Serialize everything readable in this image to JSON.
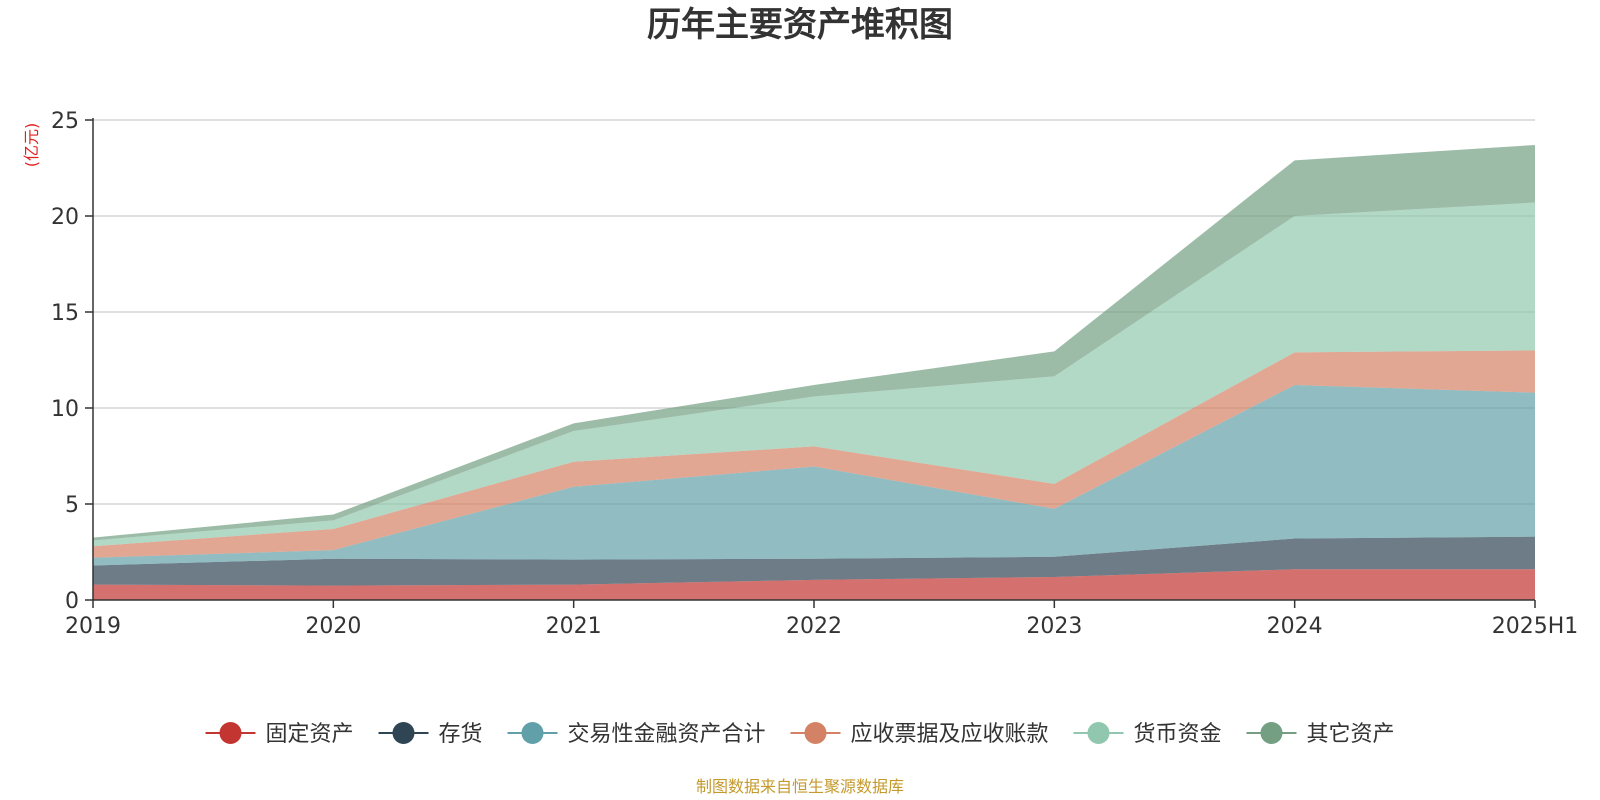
{
  "chart_data": {
    "type": "area",
    "stacked": true,
    "title": "历年主要资产堆积图",
    "ylabel": "(亿元)",
    "ylim": [
      0,
      25
    ],
    "yticks": [
      0,
      5,
      10,
      15,
      20,
      25
    ],
    "grid": true,
    "legend_position": "bottom",
    "categories": [
      "2019",
      "2020",
      "2021",
      "2022",
      "2023",
      "2024",
      "2025H1"
    ],
    "series": [
      {
        "name": "固定资产",
        "color": "#c23531",
        "values": [
          0.8,
          0.75,
          0.8,
          1.05,
          1.2,
          1.6,
          1.6
        ]
      },
      {
        "name": "存货",
        "color": "#2f4554",
        "values": [
          1.0,
          1.4,
          1.3,
          1.1,
          1.05,
          1.6,
          1.7
        ]
      },
      {
        "name": "交易性金融资产合计",
        "color": "#61a0a8",
        "values": [
          0.4,
          0.45,
          3.8,
          4.8,
          2.5,
          8.0,
          7.5
        ]
      },
      {
        "name": "应收票据及应收账款",
        "color": "#d48265",
        "values": [
          0.6,
          1.1,
          1.3,
          1.05,
          1.3,
          1.7,
          2.2
        ]
      },
      {
        "name": "货币资金",
        "color": "#91c7ae",
        "values": [
          0.3,
          0.45,
          1.6,
          2.6,
          5.6,
          7.1,
          7.7
        ]
      },
      {
        "name": "其它资产",
        "color": "#749f83",
        "values": [
          0.15,
          0.3,
          0.4,
          0.6,
          1.3,
          2.9,
          3.0
        ]
      }
    ],
    "source": "制图数据来自恒生聚源数据库"
  }
}
